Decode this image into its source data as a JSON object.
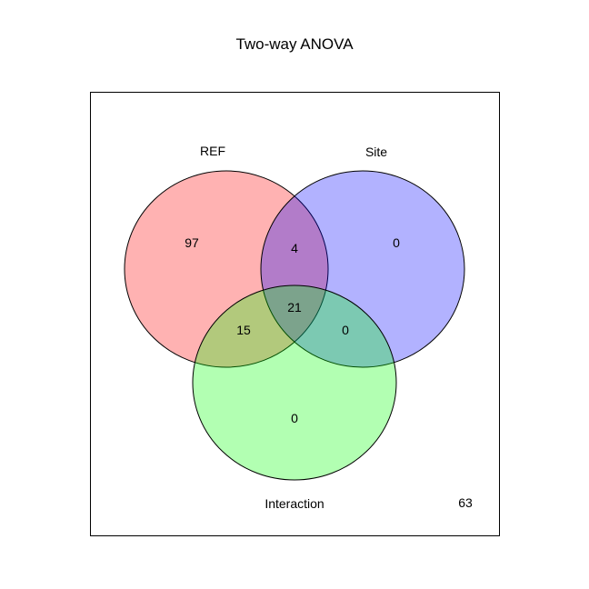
{
  "title": "Two-way ANOVA",
  "sets": [
    {
      "id": "ref",
      "name": "REF",
      "color": "#ff0000"
    },
    {
      "id": "site",
      "name": "Site",
      "color": "#0000ff"
    },
    {
      "id": "interaction",
      "name": "Interaction",
      "color": "#00ff00"
    }
  ],
  "regions": {
    "ref_only": "97",
    "site_only": "0",
    "interaction_only": "0",
    "ref_site": "4",
    "ref_interaction": "15",
    "site_interaction": "0",
    "all_three": "21",
    "outside": "63"
  }
}
